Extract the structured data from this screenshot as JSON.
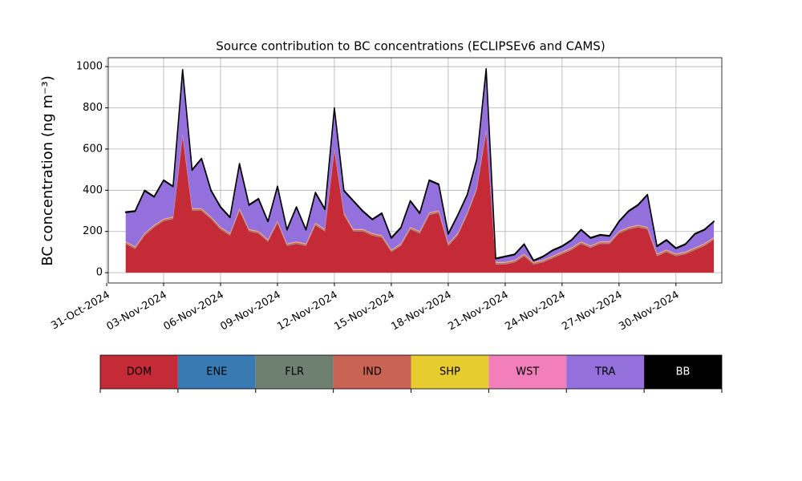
{
  "chart_data": {
    "type": "stacked_area",
    "title": "Source contribution to BC concentrations (ECLIPSEv6 and CAMS)",
    "y_label": "BC concentration (ng m⁻³)",
    "x": [
      "2024-11-01 00:00",
      "2024-11-01 12:00",
      "2024-11-02 00:00",
      "2024-11-02 12:00",
      "2024-11-03 00:00",
      "2024-11-03 12:00",
      "2024-11-04 00:00",
      "2024-11-04 12:00",
      "2024-11-05 00:00",
      "2024-11-05 12:00",
      "2024-11-06 00:00",
      "2024-11-06 12:00",
      "2024-11-07 00:00",
      "2024-11-07 12:00",
      "2024-11-08 00:00",
      "2024-11-08 12:00",
      "2024-11-09 00:00",
      "2024-11-09 12:00",
      "2024-11-10 00:00",
      "2024-11-10 12:00",
      "2024-11-11 00:00",
      "2024-11-11 12:00",
      "2024-11-12 00:00",
      "2024-11-12 12:00",
      "2024-11-13 00:00",
      "2024-11-13 12:00",
      "2024-11-14 00:00",
      "2024-11-14 12:00",
      "2024-11-15 00:00",
      "2024-11-15 12:00",
      "2024-11-16 00:00",
      "2024-11-16 12:00",
      "2024-11-17 00:00",
      "2024-11-17 12:00",
      "2024-11-18 00:00",
      "2024-11-18 12:00",
      "2024-11-19 00:00",
      "2024-11-19 12:00",
      "2024-11-20 00:00",
      "2024-11-20 12:00",
      "2024-11-21 00:00",
      "2024-11-21 12:00",
      "2024-11-22 00:00",
      "2024-11-22 12:00",
      "2024-11-23 00:00",
      "2024-11-23 12:00",
      "2024-11-24 00:00",
      "2024-11-24 12:00",
      "2024-11-25 00:00",
      "2024-11-25 12:00",
      "2024-11-26 00:00",
      "2024-11-26 12:00",
      "2024-11-27 00:00",
      "2024-11-27 12:00",
      "2024-11-28 00:00",
      "2024-11-28 12:00",
      "2024-11-29 00:00",
      "2024-11-29 12:00",
      "2024-11-30 00:00",
      "2024-11-30 12:00",
      "2024-12-01 00:00",
      "2024-12-01 12:00",
      "2024-12-02 00:00"
    ],
    "series": [
      {
        "name": "DOM",
        "color": "#c52a37",
        "values": [
          140,
          115,
          180,
          220,
          250,
          260,
          660,
          300,
          300,
          260,
          210,
          180,
          300,
          200,
          190,
          150,
          240,
          130,
          140,
          130,
          230,
          200,
          590,
          280,
          200,
          200,
          180,
          170,
          100,
          130,
          210,
          190,
          280,
          290,
          130,
          180,
          280,
          400,
          680,
          40,
          40,
          50,
          80,
          40,
          50,
          70,
          90,
          110,
          140,
          120,
          140,
          140,
          190,
          210,
          220,
          210,
          80,
          100,
          80,
          90,
          110,
          130,
          160
        ]
      },
      {
        "name": "ENE",
        "color": "#3a7ab3",
        "values": [
          1,
          1,
          1,
          1,
          1,
          1,
          1,
          1,
          1,
          1,
          1,
          1,
          1,
          1,
          1,
          1,
          1,
          1,
          1,
          1,
          1,
          1,
          1,
          1,
          1,
          1,
          1,
          1,
          1,
          1,
          1,
          1,
          1,
          1,
          1,
          1,
          1,
          1,
          1,
          1,
          1,
          1,
          1,
          1,
          1,
          1,
          1,
          1,
          1,
          1,
          1,
          1,
          1,
          1,
          1,
          1,
          1,
          1,
          1,
          1,
          1,
          1,
          1
        ]
      },
      {
        "name": "FLR",
        "color": "#6e8070",
        "values": [
          1,
          1,
          1,
          1,
          1,
          1,
          1,
          1,
          1,
          1,
          1,
          1,
          1,
          1,
          1,
          1,
          1,
          1,
          1,
          1,
          1,
          1,
          1,
          1,
          1,
          1,
          1,
          1,
          1,
          1,
          1,
          1,
          1,
          1,
          1,
          1,
          1,
          1,
          1,
          1,
          1,
          1,
          1,
          1,
          1,
          1,
          1,
          1,
          1,
          1,
          1,
          1,
          1,
          1,
          1,
          1,
          1,
          1,
          1,
          1,
          1,
          1,
          1
        ]
      },
      {
        "name": "IND",
        "color": "#c96455",
        "values": [
          6,
          6,
          6,
          6,
          6,
          6,
          6,
          6,
          6,
          6,
          6,
          6,
          6,
          6,
          6,
          6,
          6,
          6,
          6,
          6,
          6,
          6,
          6,
          6,
          6,
          6,
          6,
          6,
          6,
          6,
          6,
          6,
          6,
          6,
          6,
          6,
          6,
          6,
          6,
          6,
          6,
          6,
          6,
          6,
          6,
          6,
          6,
          6,
          6,
          6,
          6,
          6,
          6,
          6,
          6,
          6,
          6,
          6,
          6,
          6,
          6,
          6,
          6
        ]
      },
      {
        "name": "SHP",
        "color": "#e6cc2e",
        "values": [
          2,
          2,
          2,
          2,
          2,
          2,
          2,
          2,
          2,
          2,
          2,
          2,
          2,
          2,
          2,
          2,
          2,
          2,
          2,
          2,
          2,
          2,
          2,
          2,
          2,
          2,
          2,
          2,
          2,
          2,
          2,
          2,
          2,
          2,
          2,
          2,
          2,
          2,
          2,
          2,
          2,
          2,
          2,
          2,
          2,
          2,
          2,
          2,
          2,
          2,
          2,
          2,
          2,
          2,
          2,
          2,
          2,
          2,
          2,
          2,
          2,
          2,
          2
        ]
      },
      {
        "name": "WST",
        "color": "#f27fbb",
        "values": [
          2,
          2,
          2,
          2,
          2,
          2,
          2,
          2,
          2,
          2,
          2,
          2,
          2,
          2,
          2,
          2,
          2,
          2,
          2,
          2,
          2,
          2,
          2,
          2,
          2,
          2,
          2,
          2,
          2,
          2,
          2,
          2,
          2,
          2,
          2,
          2,
          2,
          2,
          2,
          2,
          2,
          2,
          2,
          2,
          2,
          2,
          2,
          2,
          2,
          2,
          2,
          2,
          2,
          2,
          2,
          2,
          2,
          2,
          2,
          2,
          2,
          2,
          2
        ]
      },
      {
        "name": "TRA",
        "color": "#9370db",
        "values": [
          140,
          170,
          205,
          135,
          185,
          145,
          311,
          185,
          240,
          125,
          95,
          75,
          215,
          115,
          155,
          85,
          165,
          65,
          165,
          65,
          145,
          95,
          195,
          105,
          135,
          85,
          65,
          105,
          55,
          75,
          125,
          85,
          155,
          125,
          45,
          85,
          85,
          135,
          295,
          15,
          25,
          25,
          45,
          5,
          15,
          25,
          25,
          35,
          55,
          35,
          30,
          25,
          45,
          75,
          95,
          155,
          35,
          45,
          25,
          35,
          65,
          65,
          75
        ]
      },
      {
        "name": "BB",
        "color": "#000000",
        "values": [
          3,
          3,
          3,
          3,
          3,
          3,
          3,
          3,
          3,
          3,
          3,
          3,
          3,
          3,
          3,
          3,
          3,
          3,
          3,
          3,
          3,
          3,
          3,
          3,
          3,
          3,
          3,
          3,
          3,
          3,
          3,
          3,
          3,
          3,
          3,
          3,
          3,
          3,
          3,
          3,
          3,
          3,
          3,
          3,
          3,
          3,
          3,
          3,
          3,
          3,
          3,
          3,
          3,
          3,
          3,
          3,
          3,
          3,
          3,
          3,
          3,
          3,
          3
        ]
      }
    ],
    "xlim": [
      "2024-10-31 02:00",
      "2024-12-02 10:00"
    ],
    "xticks": [
      {
        "value": "2024-10-31 00:00",
        "label": "31-Oct-2024"
      },
      {
        "value": "2024-11-03 00:00",
        "label": "03-Nov-2024"
      },
      {
        "value": "2024-11-06 00:00",
        "label": "06-Nov-2024"
      },
      {
        "value": "2024-11-09 00:00",
        "label": "09-Nov-2024"
      },
      {
        "value": "2024-11-12 00:00",
        "label": "12-Nov-2024"
      },
      {
        "value": "2024-11-15 00:00",
        "label": "15-Nov-2024"
      },
      {
        "value": "2024-11-18 00:00",
        "label": "18-Nov-2024"
      },
      {
        "value": "2024-11-21 00:00",
        "label": "21-Nov-2024"
      },
      {
        "value": "2024-11-24 00:00",
        "label": "24-Nov-2024"
      },
      {
        "value": "2024-11-27 00:00",
        "label": "27-Nov-2024"
      },
      {
        "value": "2024-11-30 00:00",
        "label": "30-Nov-2024"
      }
    ],
    "ylim": [
      -50,
      1043
    ],
    "yticks": [
      0,
      200,
      400,
      600,
      800,
      1000
    ],
    "grid": true
  }
}
